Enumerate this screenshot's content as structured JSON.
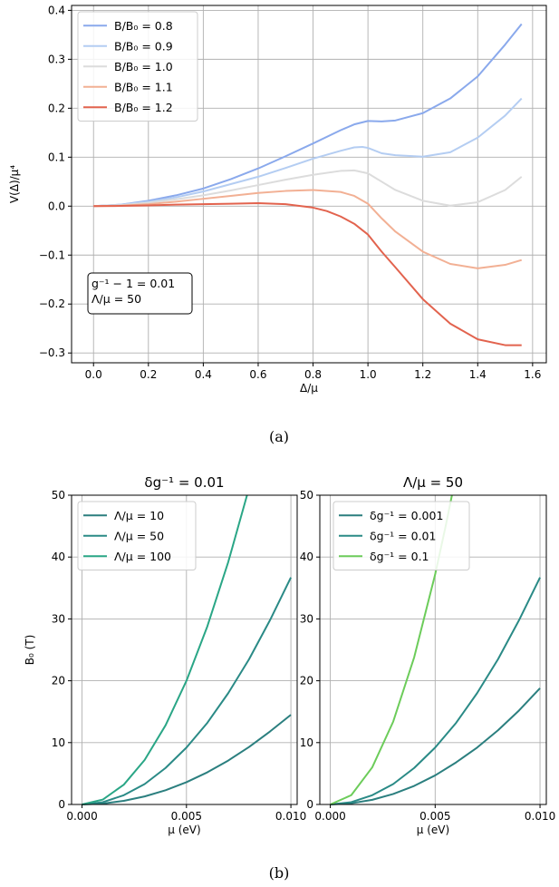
{
  "figure": {
    "caption_a": "(a)",
    "caption_b": "(b)"
  },
  "chart_data": [
    {
      "type": "line",
      "id": "a",
      "xlabel": "Δ/μ",
      "ylabel": "V(Δ)/μ⁴",
      "xlim": [
        -0.08,
        1.65
      ],
      "ylim": [
        -0.32,
        0.41
      ],
      "xticks": [
        0.0,
        0.2,
        0.4,
        0.6,
        0.8,
        1.0,
        1.2,
        1.4,
        1.6
      ],
      "xtick_labels": [
        "0.0",
        "0.2",
        "0.4",
        "0.6",
        "0.8",
        "1.0",
        "1.2",
        "1.4",
        "1.6"
      ],
      "yticks": [
        -0.3,
        -0.2,
        -0.1,
        0.0,
        0.1,
        0.2,
        0.3,
        0.4
      ],
      "ytick_labels": [
        "−0.3",
        "−0.2",
        "−0.1",
        "0.0",
        "0.1",
        "0.2",
        "0.3",
        "0.4"
      ],
      "grid": true,
      "legend_position": "top-left",
      "annotation": [
        "g⁻¹ − 1 = 0.01",
        "Λ/μ = 50"
      ],
      "annotation_position": "bottom-left",
      "series": [
        {
          "name": "B/B₀ = 0.8",
          "color": "#8aa9ec",
          "x": [
            0,
            0.1,
            0.2,
            0.3,
            0.4,
            0.5,
            0.6,
            0.7,
            0.8,
            0.9,
            0.95,
            1.0,
            1.05,
            1.1,
            1.2,
            1.3,
            1.4,
            1.5,
            1.56
          ],
          "y": [
            0,
            0.003,
            0.011,
            0.022,
            0.036,
            0.055,
            0.077,
            0.102,
            0.128,
            0.155,
            0.167,
            0.174,
            0.173,
            0.175,
            0.19,
            0.22,
            0.265,
            0.33,
            0.372
          ]
        },
        {
          "name": "B/B₀ = 0.9",
          "color": "#b4cdf2",
          "x": [
            0,
            0.1,
            0.2,
            0.3,
            0.4,
            0.5,
            0.6,
            0.7,
            0.8,
            0.9,
            0.95,
            0.98,
            1.0,
            1.05,
            1.1,
            1.2,
            1.3,
            1.4,
            1.5,
            1.56
          ],
          "y": [
            0,
            0.003,
            0.009,
            0.018,
            0.03,
            0.045,
            0.06,
            0.078,
            0.097,
            0.113,
            0.12,
            0.121,
            0.119,
            0.108,
            0.104,
            0.101,
            0.11,
            0.14,
            0.185,
            0.22
          ]
        },
        {
          "name": "B/B₀ = 1.0",
          "color": "#dcdcdc",
          "x": [
            0,
            0.1,
            0.2,
            0.3,
            0.4,
            0.5,
            0.6,
            0.7,
            0.8,
            0.9,
            0.95,
            1.0,
            1.05,
            1.1,
            1.2,
            1.3,
            1.4,
            1.5,
            1.56
          ],
          "y": [
            0,
            0.002,
            0.007,
            0.014,
            0.022,
            0.032,
            0.043,
            0.054,
            0.064,
            0.072,
            0.073,
            0.067,
            0.05,
            0.033,
            0.011,
            0.001,
            0.008,
            0.033,
            0.06
          ]
        },
        {
          "name": "B/B₀ = 1.1",
          "color": "#f2b094",
          "x": [
            0,
            0.1,
            0.2,
            0.3,
            0.4,
            0.5,
            0.6,
            0.7,
            0.8,
            0.9,
            0.95,
            1.0,
            1.05,
            1.1,
            1.2,
            1.3,
            1.4,
            1.5,
            1.56
          ],
          "y": [
            0,
            0.001,
            0.004,
            0.009,
            0.015,
            0.021,
            0.027,
            0.031,
            0.033,
            0.029,
            0.021,
            0.005,
            -0.025,
            -0.052,
            -0.093,
            -0.118,
            -0.127,
            -0.12,
            -0.11
          ]
        },
        {
          "name": "B/B₀ = 1.2",
          "color": "#e2634e",
          "x": [
            0,
            0.1,
            0.2,
            0.3,
            0.4,
            0.5,
            0.6,
            0.7,
            0.8,
            0.85,
            0.9,
            0.95,
            1.0,
            1.05,
            1.1,
            1.2,
            1.3,
            1.4,
            1.5,
            1.56
          ],
          "y": [
            0,
            0.0005,
            0.0015,
            0.003,
            0.004,
            0.005,
            0.006,
            0.004,
            -0.003,
            -0.01,
            -0.021,
            -0.036,
            -0.058,
            -0.093,
            -0.125,
            -0.19,
            -0.24,
            -0.272,
            -0.284,
            -0.284
          ]
        }
      ]
    },
    {
      "type": "line",
      "id": "b-left",
      "title": "δg⁻¹ = 0.01",
      "xlabel": "μ (eV)",
      "ylabel": "B₀ (T)",
      "xlim": [
        -0.0005,
        0.0103
      ],
      "ylim": [
        0,
        50
      ],
      "xticks": [
        0.0,
        0.005,
        0.01
      ],
      "xtick_labels": [
        "0.000",
        "0.005",
        "0.010"
      ],
      "yticks": [
        0,
        10,
        20,
        30,
        40,
        50
      ],
      "ytick_labels": [
        "0",
        "10",
        "20",
        "30",
        "40",
        "50"
      ],
      "grid": true,
      "legend_position": "top-left",
      "series": [
        {
          "name": "Λ/μ = 10",
          "color": "#2b7f7f",
          "x": [
            0,
            0.001,
            0.002,
            0.003,
            0.004,
            0.005,
            0.006,
            0.007,
            0.008,
            0.009,
            0.01
          ],
          "y": [
            0,
            0.15,
            0.58,
            1.3,
            2.3,
            3.6,
            5.2,
            7.1,
            9.3,
            11.8,
            14.5
          ]
        },
        {
          "name": "Λ/μ = 50",
          "color": "#2a8a86",
          "x": [
            0,
            0.001,
            0.002,
            0.003,
            0.004,
            0.005,
            0.006,
            0.007,
            0.008,
            0.009,
            0.01
          ],
          "y": [
            0,
            0.37,
            1.5,
            3.3,
            5.9,
            9.2,
            13.2,
            18.0,
            23.5,
            29.8,
            36.7
          ]
        },
        {
          "name": "Λ/μ = 100",
          "color": "#2aa686",
          "x": [
            0,
            0.001,
            0.002,
            0.003,
            0.004,
            0.005,
            0.006,
            0.007,
            0.0079
          ],
          "y": [
            0,
            0.8,
            3.2,
            7.2,
            12.8,
            20.0,
            28.8,
            39.2,
            50.0
          ]
        }
      ]
    },
    {
      "type": "line",
      "id": "b-right",
      "title": "Λ/μ = 50",
      "xlabel": "μ (eV)",
      "ylabel": "",
      "xlim": [
        -0.0005,
        0.0103
      ],
      "ylim": [
        0,
        50
      ],
      "xticks": [
        0.0,
        0.005,
        0.01
      ],
      "xtick_labels": [
        "0.000",
        "0.005",
        "0.010"
      ],
      "yticks": [
        0,
        10,
        20,
        30,
        40,
        50
      ],
      "ytick_labels": [
        "0",
        "10",
        "20",
        "30",
        "40",
        "50"
      ],
      "grid": true,
      "legend_position": "top-left",
      "series": [
        {
          "name": "δg⁻¹ = 0.001",
          "color": "#2b7f7f",
          "x": [
            0,
            0.001,
            0.002,
            0.003,
            0.004,
            0.005,
            0.006,
            0.007,
            0.008,
            0.009,
            0.01
          ],
          "y": [
            0,
            0.19,
            0.75,
            1.7,
            3.0,
            4.7,
            6.8,
            9.2,
            12.0,
            15.2,
            18.8
          ]
        },
        {
          "name": "δg⁻¹ = 0.01",
          "color": "#2a8a86",
          "x": [
            0,
            0.001,
            0.002,
            0.003,
            0.004,
            0.005,
            0.006,
            0.007,
            0.008,
            0.009,
            0.01
          ],
          "y": [
            0,
            0.37,
            1.5,
            3.3,
            5.9,
            9.2,
            13.2,
            18.0,
            23.5,
            29.8,
            36.7
          ]
        },
        {
          "name": "δg⁻¹ = 0.1",
          "color": "#6ccc5a",
          "x": [
            0,
            0.001,
            0.002,
            0.003,
            0.004,
            0.005,
            0.0055,
            0.0058
          ],
          "y": [
            0,
            1.5,
            6.0,
            13.4,
            23.8,
            37.2,
            45.0,
            50.0
          ]
        }
      ]
    }
  ]
}
